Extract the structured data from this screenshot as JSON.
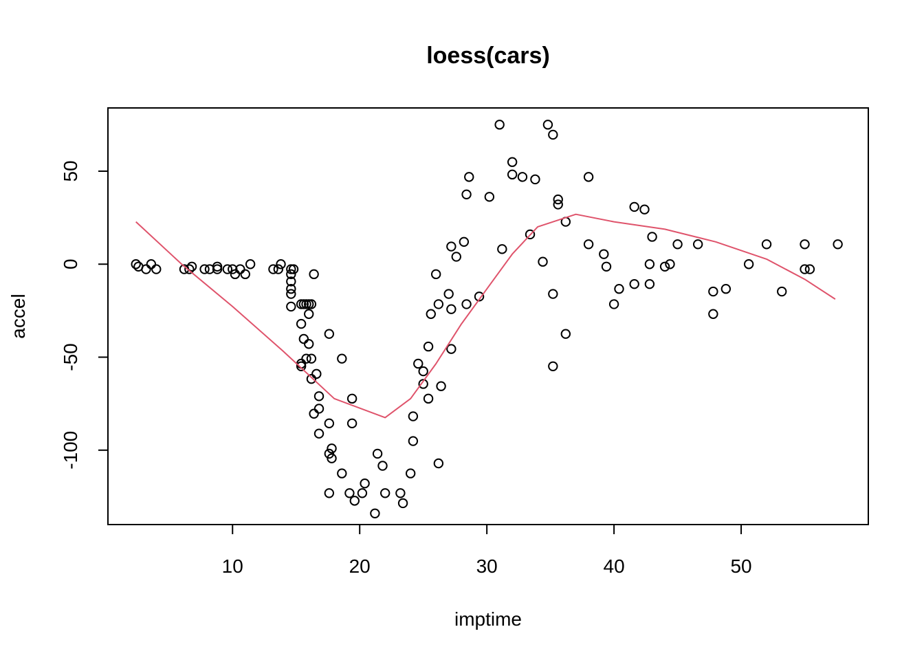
{
  "chart_data": {
    "type": "scatter",
    "title": "loess(cars)",
    "xlabel": "imptime",
    "ylabel": "accel",
    "xlim": [
      0.2,
      60
    ],
    "ylim": [
      -140,
      84
    ],
    "x_ticks": [
      10,
      20,
      30,
      40,
      50
    ],
    "y_ticks": [
      50,
      0,
      -50,
      -100
    ],
    "x_tick_labels": [
      "10",
      "20",
      "30",
      "40",
      "50"
    ],
    "y_tick_labels": [
      "50",
      "0",
      "-50",
      "-100"
    ],
    "grid": false,
    "legend": "none",
    "point_color": "#000000",
    "curve_color": "#DF536B",
    "points": [
      [
        2.4,
        0
      ],
      [
        2.6,
        -1.3
      ],
      [
        3.2,
        -2.7
      ],
      [
        3.6,
        0
      ],
      [
        4.0,
        -2.7
      ],
      [
        6.2,
        -2.7
      ],
      [
        6.6,
        -2.7
      ],
      [
        6.8,
        -1.3
      ],
      [
        7.8,
        -2.7
      ],
      [
        8.2,
        -2.7
      ],
      [
        8.8,
        -1.3
      ],
      [
        8.8,
        -2.7
      ],
      [
        9.6,
        -2.7
      ],
      [
        10.0,
        -2.7
      ],
      [
        10.2,
        -5.4
      ],
      [
        10.6,
        -2.7
      ],
      [
        11.0,
        -5.4
      ],
      [
        11.4,
        0
      ],
      [
        13.2,
        -2.7
      ],
      [
        13.6,
        -2.7
      ],
      [
        13.8,
        0
      ],
      [
        14.6,
        -2.7
      ],
      [
        14.6,
        -5.4
      ],
      [
        14.6,
        -9.3
      ],
      [
        14.6,
        -13.3
      ],
      [
        14.6,
        -16.0
      ],
      [
        14.6,
        -22.8
      ],
      [
        14.8,
        -2.7
      ],
      [
        15.4,
        -21.5
      ],
      [
        15.4,
        -32.1
      ],
      [
        15.4,
        -53.5
      ],
      [
        15.4,
        -54.9
      ],
      [
        15.6,
        -21.5
      ],
      [
        15.6,
        -40.2
      ],
      [
        15.8,
        -21.5
      ],
      [
        15.8,
        -50.8
      ],
      [
        16.0,
        -21.5
      ],
      [
        16.0,
        -26.8
      ],
      [
        16.0,
        -42.9
      ],
      [
        16.2,
        -21.5
      ],
      [
        16.2,
        -50.8
      ],
      [
        16.2,
        -61.7
      ],
      [
        16.4,
        -5.4
      ],
      [
        16.4,
        -80.4
      ],
      [
        16.6,
        -59.0
      ],
      [
        16.8,
        -71.0
      ],
      [
        16.8,
        -77.7
      ],
      [
        16.8,
        -91.1
      ],
      [
        17.6,
        -37.5
      ],
      [
        17.6,
        -85.6
      ],
      [
        17.6,
        -101.9
      ],
      [
        17.6,
        -123.1
      ],
      [
        17.8,
        -99.1
      ],
      [
        17.8,
        -104.4
      ],
      [
        18.6,
        -50.8
      ],
      [
        18.6,
        -112.5
      ],
      [
        19.2,
        -123.1
      ],
      [
        19.4,
        -72.3
      ],
      [
        19.4,
        -85.6
      ],
      [
        19.6,
        -127.2
      ],
      [
        20.2,
        -123.1
      ],
      [
        20.4,
        -117.9
      ],
      [
        21.2,
        -134.0
      ],
      [
        21.4,
        -101.9
      ],
      [
        21.8,
        -108.4
      ],
      [
        22.0,
        -123.1
      ],
      [
        23.2,
        -123.1
      ],
      [
        23.4,
        -128.5
      ],
      [
        24.0,
        -112.5
      ],
      [
        24.2,
        -95.1
      ],
      [
        24.2,
        -81.8
      ],
      [
        24.6,
        -53.5
      ],
      [
        25.0,
        -64.4
      ],
      [
        25.0,
        -57.6
      ],
      [
        25.4,
        -72.3
      ],
      [
        25.4,
        -44.3
      ],
      [
        25.6,
        -26.8
      ],
      [
        26.0,
        -5.4
      ],
      [
        26.2,
        -21.5
      ],
      [
        26.2,
        -107.1
      ],
      [
        26.4,
        -65.6
      ],
      [
        27.0,
        -16.0
      ],
      [
        27.2,
        9.5
      ],
      [
        27.2,
        -24.2
      ],
      [
        27.2,
        -45.6
      ],
      [
        27.6,
        4.0
      ],
      [
        28.2,
        12.0
      ],
      [
        28.4,
        37.5
      ],
      [
        28.4,
        -21.5
      ],
      [
        28.6,
        46.9
      ],
      [
        29.4,
        -17.4
      ],
      [
        30.2,
        36.2
      ],
      [
        31.0,
        75.0
      ],
      [
        31.2,
        8.1
      ],
      [
        32.0,
        54.9
      ],
      [
        32.0,
        48.2
      ],
      [
        32.8,
        46.9
      ],
      [
        33.4,
        16.0
      ],
      [
        33.8,
        45.6
      ],
      [
        34.4,
        1.3
      ],
      [
        34.8,
        75.0
      ],
      [
        35.2,
        69.6
      ],
      [
        35.2,
        -16.0
      ],
      [
        35.2,
        -54.9
      ],
      [
        35.6,
        34.8
      ],
      [
        35.6,
        32.1
      ],
      [
        36.2,
        22.8
      ],
      [
        36.2,
        -37.5
      ],
      [
        38.0,
        46.9
      ],
      [
        38.0,
        10.7
      ],
      [
        39.2,
        5.4
      ],
      [
        39.4,
        -1.3
      ],
      [
        40.0,
        -21.5
      ],
      [
        40.4,
        -13.3
      ],
      [
        41.6,
        30.8
      ],
      [
        41.6,
        -10.7
      ],
      [
        42.4,
        29.4
      ],
      [
        42.8,
        0
      ],
      [
        42.8,
        -10.7
      ],
      [
        43.0,
        14.7
      ],
      [
        44.0,
        -1.3
      ],
      [
        44.4,
        0
      ],
      [
        45.0,
        10.7
      ],
      [
        46.6,
        10.7
      ],
      [
        47.8,
        -14.7
      ],
      [
        47.8,
        -26.8
      ],
      [
        48.8,
        -13.3
      ],
      [
        50.6,
        0
      ],
      [
        52.0,
        10.7
      ],
      [
        53.2,
        -14.7
      ],
      [
        55.0,
        10.7
      ],
      [
        55.0,
        -2.7
      ],
      [
        55.4,
        -2.7
      ],
      [
        57.6,
        10.7
      ]
    ],
    "loess_curve": [
      [
        2.4,
        22.8
      ],
      [
        6.0,
        0
      ],
      [
        10.0,
        -22.8
      ],
      [
        14.0,
        -46.9
      ],
      [
        18.0,
        -72.3
      ],
      [
        22.0,
        -82.5
      ],
      [
        24.0,
        -72.3
      ],
      [
        26.0,
        -53.5
      ],
      [
        28.0,
        -32.1
      ],
      [
        30.0,
        -13.3
      ],
      [
        32.0,
        5.4
      ],
      [
        34.0,
        20.1
      ],
      [
        37.0,
        26.8
      ],
      [
        40.0,
        22.8
      ],
      [
        44.0,
        18.8
      ],
      [
        48.0,
        12.0
      ],
      [
        52.0,
        2.7
      ],
      [
        55.0,
        -8.1
      ],
      [
        57.4,
        -18.8
      ]
    ]
  }
}
